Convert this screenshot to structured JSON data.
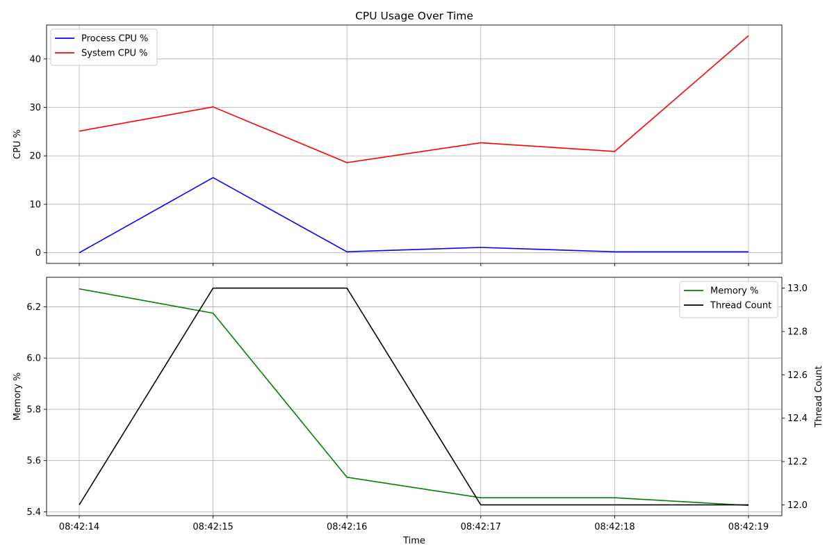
{
  "chart_data": [
    {
      "type": "line",
      "title": "CPU Usage Over Time",
      "xlabel": "",
      "ylabel": "CPU %",
      "categories": [
        "08:42:14",
        "08:42:15",
        "08:42:16",
        "08:42:17",
        "08:42:18",
        "08:42:19"
      ],
      "ylim": [
        -2.2,
        47
      ],
      "yticks": [
        0,
        10,
        20,
        30,
        40
      ],
      "grid": true,
      "legend": "top-left",
      "series": [
        {
          "name": "Process CPU %",
          "color": "#0000ff",
          "values": [
            0.0,
            15.5,
            0.2,
            1.1,
            0.2,
            0.2
          ]
        },
        {
          "name": "System CPU %",
          "color": "#ff0000",
          "values": [
            25.1,
            30.1,
            18.6,
            22.7,
            20.9,
            44.8
          ]
        }
      ]
    },
    {
      "type": "line",
      "title": "",
      "xlabel": "Time",
      "ylabel": "Memory %",
      "ylabel_right": "Thread Count",
      "categories": [
        "08:42:14",
        "08:42:15",
        "08:42:16",
        "08:42:17",
        "08:42:18",
        "08:42:19"
      ],
      "ylim": [
        5.385,
        6.315
      ],
      "yticks": [
        5.4,
        5.6,
        5.8,
        6.0,
        6.2
      ],
      "ytick_labels": [
        "5.4",
        "5.6",
        "5.8",
        "6.0",
        "6.2"
      ],
      "ylim_right": [
        11.95,
        13.05
      ],
      "yticks_right": [
        12.0,
        12.2,
        12.4,
        12.6,
        12.8,
        13.0
      ],
      "ytick_labels_right": [
        "12.0",
        "12.2",
        "12.4",
        "12.6",
        "12.8",
        "13.0"
      ],
      "grid": true,
      "legend": "top-right",
      "series": [
        {
          "name": "Memory %",
          "color": "#008000",
          "axis": "left",
          "values": [
            6.27,
            6.175,
            5.535,
            5.455,
            5.455,
            5.425
          ]
        },
        {
          "name": "Thread Count",
          "color": "#000000",
          "axis": "right",
          "values": [
            12,
            13,
            13,
            12,
            12,
            12
          ]
        }
      ]
    }
  ]
}
